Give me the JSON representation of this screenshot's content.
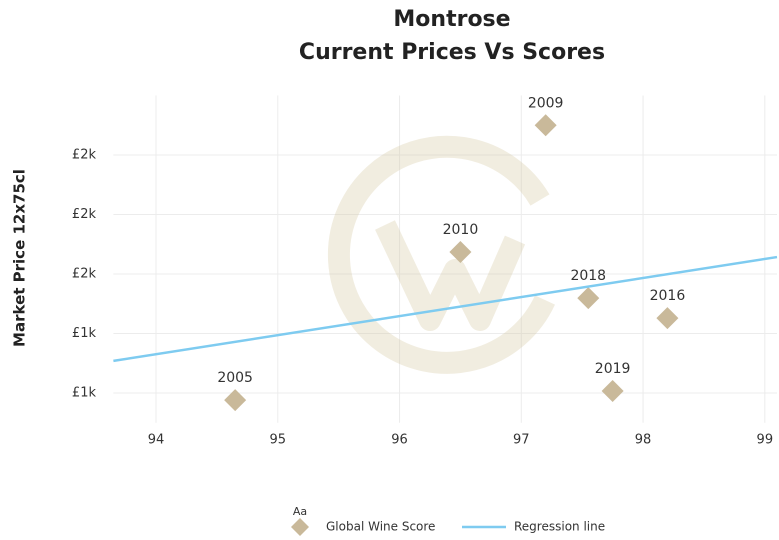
{
  "chart_data": {
    "type": "scatter",
    "title": [
      "Montrose",
      "Current Prices Vs Scores"
    ],
    "ylabel": "Market Price 12x75cl",
    "xlim": [
      93.65,
      99.1
    ],
    "ylim": [
      1000,
      2100
    ],
    "xticks": [
      94,
      95,
      96,
      97,
      98,
      99
    ],
    "yticks": [
      {
        "value": 1100,
        "label": "£1k"
      },
      {
        "value": 1300,
        "label": "£1k"
      },
      {
        "value": 1500,
        "label": "£2k"
      },
      {
        "value": 1700,
        "label": "£2k"
      },
      {
        "value": 1900,
        "label": "£2k"
      }
    ],
    "grid": true,
    "legend_title": "Aa",
    "series": [
      {
        "name": "Global Wine Score",
        "color": "#c9b99a",
        "kind": "points",
        "x": [
          94.65,
          96.5,
          97.2,
          97.55,
          98.2,
          97.75
        ],
        "values": [
          1076,
          1574,
          2000,
          1419,
          1352,
          1107
        ],
        "point_labels": [
          "2005",
          "2010",
          "2009",
          "2018",
          "2016",
          "2019"
        ]
      },
      {
        "name": "Regression line",
        "color": "#7ecbf0",
        "kind": "line",
        "x": [
          93.65,
          99.1
        ],
        "values": [
          1208,
          1557
        ]
      }
    ]
  }
}
